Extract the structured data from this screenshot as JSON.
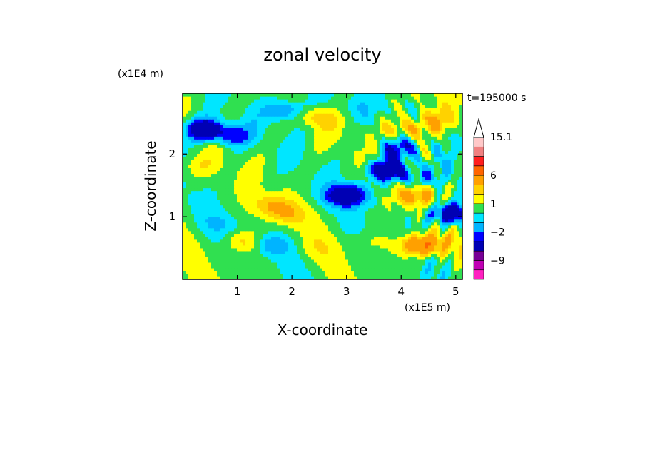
{
  "chart_data": {
    "type": "heatmap",
    "title": "zonal velocity",
    "xlabel": "X-coordinate",
    "ylabel": "Z-coordinate",
    "x_unit": "(x1E5 m)",
    "y_unit": "(x1E4 m)",
    "time_label": "t=195000 s",
    "xlim": [
      0,
      5.12
    ],
    "ylim": [
      0,
      2.97
    ],
    "x_ticks": [
      1,
      2,
      3,
      4,
      5
    ],
    "y_ticks": [
      1,
      2
    ],
    "colorbar": {
      "levels": [
        -15,
        -12,
        -9,
        -6,
        -3,
        -2,
        -1,
        0,
        1,
        2,
        3,
        6,
        9,
        12,
        15.1
      ],
      "labels": [
        {
          "value": 15.1,
          "text": "15.1"
        },
        {
          "value": 6,
          "text": "6"
        },
        {
          "value": 1,
          "text": "1"
        },
        {
          "value": -2,
          "text": "−2"
        },
        {
          "value": -9,
          "text": "−9"
        }
      ],
      "colors": [
        "#ff20c0",
        "#c000b4",
        "#780096",
        "#0000b4",
        "#0000ff",
        "#00b4ff",
        "#00e6ff",
        "#30e050",
        "#ffff00",
        "#ffd200",
        "#ffa000",
        "#ff6400",
        "#ff1e1e",
        "#f08080",
        "#ffc8c8"
      ]
    },
    "features": [
      {
        "x": 0.4,
        "z": 2.4,
        "value": -6
      },
      {
        "x": 0.9,
        "z": 2.3,
        "value": -3
      },
      {
        "x": 1.9,
        "z": 2.7,
        "value": -3
      },
      {
        "x": 2.4,
        "z": 2.9,
        "value": -1
      },
      {
        "x": 3.1,
        "z": 2.75,
        "value": -1
      },
      {
        "x": 3.0,
        "z": 1.35,
        "value": -6
      },
      {
        "x": 3.75,
        "z": 1.75,
        "value": -6
      },
      {
        "x": 3.9,
        "z": 2.1,
        "value": -3
      },
      {
        "x": 4.3,
        "z": 1.6,
        "value": -2
      },
      {
        "x": 4.9,
        "z": 1.05,
        "value": -6
      },
      {
        "x": 4.1,
        "z": 2.4,
        "value": 3
      },
      {
        "x": 4.6,
        "z": 2.55,
        "value": 2
      },
      {
        "x": 4.25,
        "z": 1.35,
        "value": 3
      },
      {
        "x": 1.6,
        "z": 1.2,
        "value": 2
      },
      {
        "x": 1.9,
        "z": 1.05,
        "value": 2
      },
      {
        "x": 2.4,
        "z": 2.6,
        "value": 2
      },
      {
        "x": 1.1,
        "z": 0.6,
        "value": 2
      },
      {
        "x": 0.3,
        "z": 1.8,
        "value": 1
      },
      {
        "x": 3.4,
        "z": 0.6,
        "value": 1
      },
      {
        "x": 2.4,
        "z": 0.5,
        "value": 0.5
      },
      {
        "x": 1.6,
        "z": 0.55,
        "value": -2
      },
      {
        "x": 0.7,
        "z": 0.9,
        "value": -1
      },
      {
        "x": 4.4,
        "z": 0.55,
        "value": 6
      }
    ]
  }
}
